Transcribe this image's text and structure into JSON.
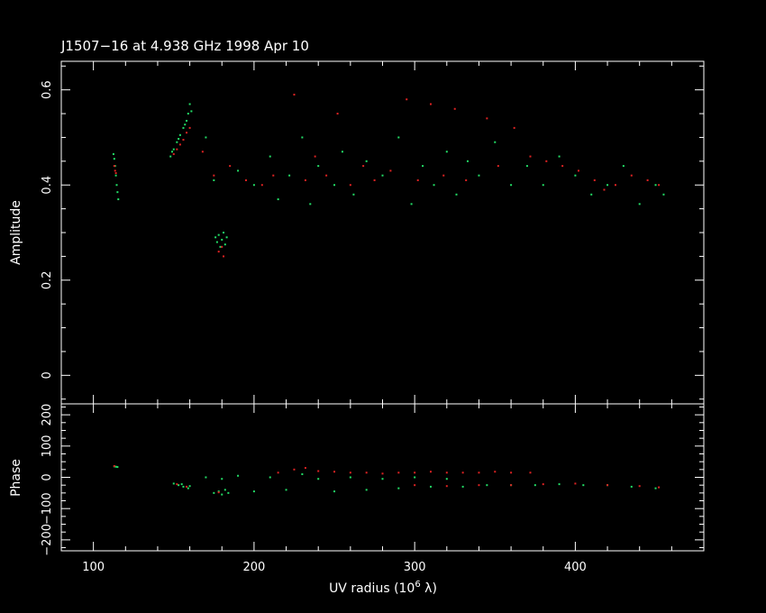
{
  "title": "J1507−16 at 4.938 GHz 1998 Apr 10",
  "colors": {
    "background": "#000000",
    "axes": "#ffffff",
    "series_green": "#22dd66",
    "series_red": "#dd2222"
  },
  "chart_data": [
    {
      "type": "scatter",
      "panel": "amplitude",
      "xlabel": "",
      "ylabel": "Amplitude",
      "xlim": [
        80,
        480
      ],
      "ylim": [
        -0.06,
        0.66
      ],
      "x_ticks": [
        100,
        200,
        300,
        400
      ],
      "y_ticks": [
        0,
        0.2,
        0.4,
        0.6
      ],
      "y_tick_labels": [
        "0",
        "0.2",
        "0.4",
        "0.6"
      ],
      "series": [
        {
          "color": "green",
          "points": [
            [
              112.5,
              0.465
            ],
            [
              113,
              0.455
            ],
            [
              113.5,
              0.44
            ],
            [
              114,
              0.42
            ],
            [
              114.5,
              0.4
            ],
            [
              115,
              0.385
            ],
            [
              115.5,
              0.37
            ],
            [
              148,
              0.46
            ],
            [
              150,
              0.475
            ],
            [
              152,
              0.49
            ],
            [
              154,
              0.505
            ],
            [
              156,
              0.52
            ],
            [
              158,
              0.535
            ],
            [
              159,
              0.55
            ],
            [
              160,
              0.57
            ],
            [
              161,
              0.555
            ],
            [
              149,
              0.47
            ],
            [
              153,
              0.497
            ],
            [
              157,
              0.527
            ],
            [
              176,
              0.29
            ],
            [
              177,
              0.28
            ],
            [
              178,
              0.295
            ],
            [
              179,
              0.27
            ],
            [
              180,
              0.285
            ],
            [
              181,
              0.3
            ],
            [
              182,
              0.275
            ],
            [
              183,
              0.29
            ],
            [
              170,
              0.5
            ],
            [
              175,
              0.41
            ],
            [
              190,
              0.43
            ],
            [
              200,
              0.4
            ],
            [
              210,
              0.46
            ],
            [
              215,
              0.37
            ],
            [
              222,
              0.42
            ],
            [
              230,
              0.5
            ],
            [
              235,
              0.36
            ],
            [
              240,
              0.44
            ],
            [
              250,
              0.4
            ],
            [
              255,
              0.47
            ],
            [
              262,
              0.38
            ],
            [
              270,
              0.45
            ],
            [
              280,
              0.42
            ],
            [
              290,
              0.5
            ],
            [
              298,
              0.36
            ],
            [
              305,
              0.44
            ],
            [
              312,
              0.4
            ],
            [
              320,
              0.47
            ],
            [
              326,
              0.38
            ],
            [
              333,
              0.45
            ],
            [
              340,
              0.42
            ],
            [
              350,
              0.49
            ],
            [
              360,
              0.4
            ],
            [
              370,
              0.44
            ],
            [
              380,
              0.4
            ],
            [
              390,
              0.46
            ],
            [
              400,
              0.42
            ],
            [
              410,
              0.38
            ],
            [
              420,
              0.4
            ],
            [
              430,
              0.44
            ],
            [
              440,
              0.36
            ],
            [
              450,
              0.4
            ],
            [
              455,
              0.38
            ]
          ]
        },
        {
          "color": "red",
          "points": [
            [
              113,
              0.44
            ],
            [
              113.5,
              0.43
            ],
            [
              114,
              0.425
            ],
            [
              150,
              0.465
            ],
            [
              152,
              0.475
            ],
            [
              154,
              0.485
            ],
            [
              156,
              0.495
            ],
            [
              158,
              0.51
            ],
            [
              160,
              0.52
            ],
            [
              178,
              0.26
            ],
            [
              180,
              0.27
            ],
            [
              181,
              0.25
            ],
            [
              168,
              0.47
            ],
            [
              175,
              0.42
            ],
            [
              185,
              0.44
            ],
            [
              195,
              0.41
            ],
            [
              205,
              0.4
            ],
            [
              212,
              0.42
            ],
            [
              225,
              0.59
            ],
            [
              232,
              0.41
            ],
            [
              238,
              0.46
            ],
            [
              245,
              0.42
            ],
            [
              252,
              0.55
            ],
            [
              260,
              0.4
            ],
            [
              268,
              0.44
            ],
            [
              275,
              0.41
            ],
            [
              285,
              0.43
            ],
            [
              295,
              0.58
            ],
            [
              302,
              0.41
            ],
            [
              310,
              0.57
            ],
            [
              318,
              0.42
            ],
            [
              325,
              0.56
            ],
            [
              332,
              0.41
            ],
            [
              345,
              0.54
            ],
            [
              352,
              0.44
            ],
            [
              362,
              0.52
            ],
            [
              372,
              0.46
            ],
            [
              382,
              0.45
            ],
            [
              392,
              0.44
            ],
            [
              402,
              0.43
            ],
            [
              412,
              0.41
            ],
            [
              418,
              0.39
            ],
            [
              425,
              0.4
            ],
            [
              435,
              0.42
            ],
            [
              445,
              0.41
            ],
            [
              452,
              0.4
            ]
          ]
        }
      ]
    },
    {
      "type": "scatter",
      "panel": "phase",
      "xlabel": "UV radius  (10",
      "xlabel_sup": "6",
      "xlabel_end": " λ)",
      "ylabel": "Phase",
      "xlim": [
        80,
        480
      ],
      "ylim": [
        -235,
        235
      ],
      "x_ticks": [
        100,
        200,
        300,
        400
      ],
      "x_tick_labels": [
        "100",
        "200",
        "300",
        "400"
      ],
      "y_ticks": [
        -200,
        -100,
        0,
        100,
        200
      ],
      "y_tick_labels": [
        "−200",
        "−100",
        "0",
        "100",
        "200"
      ],
      "series": [
        {
          "color": "green",
          "points": [
            [
              113,
              35
            ],
            [
              114,
              34
            ],
            [
              115,
              33
            ],
            [
              150,
              -20
            ],
            [
              153,
              -25
            ],
            [
              156,
              -30
            ],
            [
              159,
              -35
            ],
            [
              155,
              -22
            ],
            [
              160,
              -28
            ],
            [
              175,
              -50
            ],
            [
              178,
              -45
            ],
            [
              180,
              -55
            ],
            [
              182,
              -40
            ],
            [
              184,
              -50
            ],
            [
              170,
              0
            ],
            [
              180,
              -5
            ],
            [
              190,
              5
            ],
            [
              200,
              -45
            ],
            [
              210,
              0
            ],
            [
              220,
              -40
            ],
            [
              230,
              10
            ],
            [
              240,
              -5
            ],
            [
              250,
              -45
            ],
            [
              260,
              0
            ],
            [
              270,
              -40
            ],
            [
              280,
              -5
            ],
            [
              290,
              -35
            ],
            [
              300,
              0
            ],
            [
              310,
              -30
            ],
            [
              320,
              -5
            ],
            [
              330,
              -30
            ],
            [
              345,
              -25
            ],
            [
              360,
              -25
            ],
            [
              375,
              -25
            ],
            [
              390,
              -22
            ],
            [
              405,
              -25
            ],
            [
              420,
              -25
            ],
            [
              435,
              -30
            ],
            [
              450,
              -35
            ]
          ]
        },
        {
          "color": "red",
          "points": [
            [
              113,
              36
            ],
            [
              152,
              -22
            ],
            [
              158,
              -30
            ],
            [
              178,
              -48
            ],
            [
              215,
              15
            ],
            [
              225,
              25
            ],
            [
              232,
              30
            ],
            [
              240,
              20
            ],
            [
              250,
              18
            ],
            [
              260,
              15
            ],
            [
              270,
              15
            ],
            [
              280,
              12
            ],
            [
              290,
              15
            ],
            [
              300,
              15
            ],
            [
              310,
              18
            ],
            [
              320,
              15
            ],
            [
              330,
              15
            ],
            [
              340,
              15
            ],
            [
              350,
              18
            ],
            [
              360,
              15
            ],
            [
              372,
              15
            ],
            [
              300,
              -25
            ],
            [
              320,
              -28
            ],
            [
              340,
              -25
            ],
            [
              360,
              -25
            ],
            [
              380,
              -22
            ],
            [
              400,
              -20
            ],
            [
              420,
              -25
            ],
            [
              440,
              -28
            ],
            [
              452,
              -32
            ]
          ]
        }
      ]
    }
  ]
}
